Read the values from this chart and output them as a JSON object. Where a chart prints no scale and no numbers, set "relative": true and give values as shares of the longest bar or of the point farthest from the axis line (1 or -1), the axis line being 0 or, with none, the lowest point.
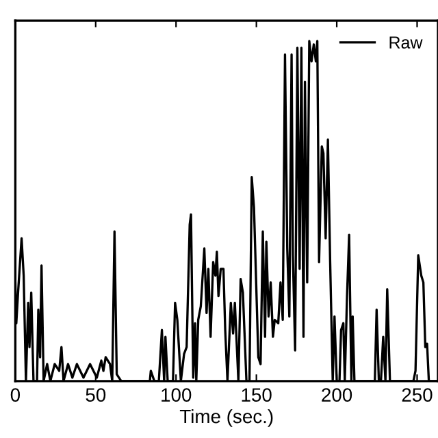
{
  "chart_data": {
    "type": "line",
    "xlabel": "Time (sec.)",
    "relative": true,
    "xlim": [
      0,
      263
    ],
    "xticks": [
      0,
      50,
      100,
      150,
      200,
      250
    ],
    "legend": "top right",
    "grid": false,
    "series": [
      {
        "name": "Raw",
        "color": "#000000",
        "x": [
          0,
          0.6,
          1.7,
          3.9,
          5.2,
          6.6,
          8.0,
          8.8,
          9.9,
          11.3,
          13.5,
          14.3,
          15.4,
          16.3,
          17.6,
          19.8,
          21.8,
          24.5,
          27.3,
          28.7,
          30.0,
          32.8,
          35.5,
          38.3,
          42.4,
          46.5,
          50.7,
          53.5,
          54.8,
          56.2,
          58.9,
          60.3,
          61.7,
          63.1,
          65.9,
          83.7,
          84.3,
          86.5,
          89.3,
          91.2,
          92.6,
          93.4,
          94.8,
          98.1,
          99.4,
          100.8,
          103.0,
          105.0,
          106.6,
          108.5,
          109.3,
          110.7,
          111.8,
          112.6,
          113.8,
          115.4,
          117.6,
          119.0,
          120.1,
          121.5,
          123.1,
          124.5,
          125.4,
          126.4,
          127.8,
          129.5,
          130.6,
          132.0,
          134.1,
          135.5,
          136.6,
          138.8,
          140.2,
          141.6,
          143.8,
          145.7,
          147.1,
          148.5,
          151.2,
          152.6,
          154.0,
          155.4,
          156.2,
          157.6,
          158.9,
          160.3,
          161.4,
          163.6,
          165.0,
          166.4,
          167.8,
          169.2,
          170.5,
          171.9,
          172.7,
          174.1,
          175.5,
          176.9,
          178.0,
          179.3,
          180.2,
          181.6,
          182.9,
          184.3,
          185.7,
          187.0,
          187.9,
          189.0,
          190.7,
          191.7,
          193.1,
          194.5,
          195.9,
          197.5,
          198.6,
          200.0,
          201.7,
          202.7,
          204.1,
          205.0,
          206.4,
          207.7,
          209.1,
          209.9,
          211.0,
          223.7,
          224.8,
          226.2,
          227.5,
          228.9,
          230.3,
          231.4,
          233.1,
          247.7,
          249.0,
          250.7,
          252.6,
          253.9,
          255.1,
          256.2,
          257.3,
          262.8
        ],
        "values": [
          0.29,
          0.17,
          0.26,
          0.42,
          0.31,
          0,
          0.23,
          0.1,
          0.26,
          0,
          0,
          0.21,
          0.07,
          0.34,
          0,
          0.05,
          0,
          0.05,
          0.03,
          0.1,
          0,
          0.05,
          0.01,
          0.05,
          0.01,
          0.05,
          0.01,
          0.06,
          0.03,
          0.07,
          0.05,
          0,
          0.44,
          0.02,
          0,
          0,
          0.03,
          0,
          0,
          0.15,
          0,
          0.13,
          0,
          0,
          0.23,
          0.18,
          0,
          0.08,
          0.1,
          0.46,
          0.49,
          0.01,
          0.17,
          0,
          0.18,
          0.22,
          0.39,
          0.2,
          0.33,
          0.13,
          0.35,
          0.31,
          0.38,
          0.25,
          0.33,
          0.33,
          0.15,
          0,
          0.23,
          0.14,
          0.23,
          0,
          0.3,
          0.26,
          0,
          0,
          0.6,
          0.51,
          0.07,
          0.05,
          0.44,
          0.13,
          0.41,
          0.19,
          0.29,
          0.13,
          0.18,
          0.17,
          0.29,
          0.18,
          0.96,
          0.39,
          0.19,
          0.96,
          0.37,
          0.09,
          0.98,
          0.33,
          0.98,
          0.13,
          0.88,
          0.29,
          1.0,
          0.94,
          0.99,
          0.94,
          1.0,
          0.35,
          0.69,
          0.67,
          0.42,
          0.71,
          0.35,
          0,
          0.19,
          0,
          0,
          0.15,
          0.17,
          0,
          0.25,
          0.43,
          0,
          0.19,
          0,
          0,
          0.21,
          0,
          0,
          0.13,
          0,
          0.27,
          0,
          0,
          0.03,
          0.37,
          0.31,
          0.29,
          0.1,
          0.11,
          0,
          0
        ]
      }
    ]
  }
}
